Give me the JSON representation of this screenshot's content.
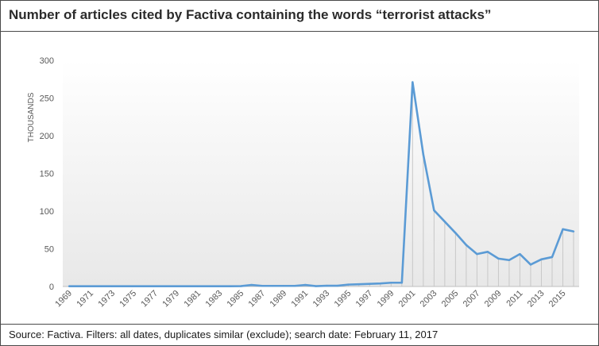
{
  "chart_data": {
    "type": "line",
    "title": "Number of articles cited by Factiva containing the words “terrorist attacks”",
    "ylabel": "THOUSANDS",
    "xlabel": "",
    "ylim": [
      0,
      300
    ],
    "yticks": [
      0,
      50,
      100,
      150,
      200,
      250,
      300
    ],
    "x_tick_labels": [
      "1969",
      "1971",
      "1973",
      "1975",
      "1977",
      "1979",
      "1981",
      "1983",
      "1985",
      "1987",
      "1989",
      "1991",
      "1993",
      "1995",
      "1997",
      "1999",
      "2001",
      "2003",
      "2005",
      "2007",
      "2009",
      "2011",
      "2013",
      "2015"
    ],
    "x": [
      1969,
      1970,
      1971,
      1972,
      1973,
      1974,
      1975,
      1976,
      1977,
      1978,
      1979,
      1980,
      1981,
      1982,
      1983,
      1984,
      1985,
      1986,
      1987,
      1988,
      1989,
      1990,
      1991,
      1992,
      1993,
      1994,
      1995,
      1996,
      1997,
      1998,
      1999,
      2000,
      2001,
      2002,
      2003,
      2004,
      2005,
      2006,
      2007,
      2008,
      2009,
      2010,
      2011,
      2012,
      2013,
      2014,
      2015,
      2016
    ],
    "series": [
      {
        "values": [
          0.3,
          0.3,
          0.3,
          0.3,
          0.3,
          0.3,
          0.3,
          0.3,
          0.3,
          0.3,
          0.3,
          0.3,
          0.3,
          0.3,
          0.3,
          0.3,
          0.5,
          2,
          0.8,
          0.8,
          0.8,
          0.8,
          2,
          0.5,
          1,
          1,
          2.5,
          3,
          3.5,
          4,
          5,
          5,
          271,
          175,
          101,
          86,
          71,
          55,
          43,
          46,
          37,
          35,
          43,
          29,
          36,
          39,
          76,
          73
        ],
        "color": "#5b9bd5"
      }
    ],
    "grid": false,
    "area_under_line": "light vertical drop lines"
  },
  "footer": {
    "source": "Source: Factiva. Filters: all dates, duplicates similar (exclude); search date: February 11, 2017"
  },
  "colors": {
    "line": "#5b9bd5",
    "plot_gradient_top": "#ffffff",
    "plot_gradient_bottom": "#e8e8e8",
    "drop_lines": "#c8c8c8",
    "axis": "#bfbfbf",
    "text": "#595959"
  }
}
